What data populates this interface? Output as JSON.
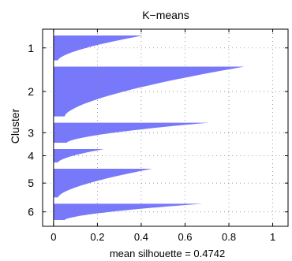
{
  "chart_data": {
    "type": "bar",
    "title": "K−means",
    "xlabel": "mean silhouette = 0.4742",
    "ylabel": "Cluster",
    "xlim": [
      -0.05,
      1.07
    ],
    "xticks": [
      0,
      0.2,
      0.4,
      0.6,
      0.8,
      1
    ],
    "xtick_labels": [
      "0",
      "0.2",
      "0.4",
      "0.6",
      "0.8",
      "1"
    ],
    "grid": "dotted",
    "bar_color": "#7878fa",
    "clusters": [
      {
        "label": "1",
        "size": 26,
        "max": 0.41,
        "min": 0.02
      },
      {
        "label": "2",
        "size": 52,
        "max": 0.87,
        "min": 0.05
      },
      {
        "label": "3",
        "size": 21,
        "max": 0.71,
        "min": 0.06
      },
      {
        "label": "4",
        "size": 14,
        "max": 0.23,
        "min": 0.02
      },
      {
        "label": "5",
        "size": 30,
        "max": 0.45,
        "min": 0.02
      },
      {
        "label": "6",
        "size": 17,
        "max": 0.68,
        "min": 0.05
      }
    ]
  }
}
